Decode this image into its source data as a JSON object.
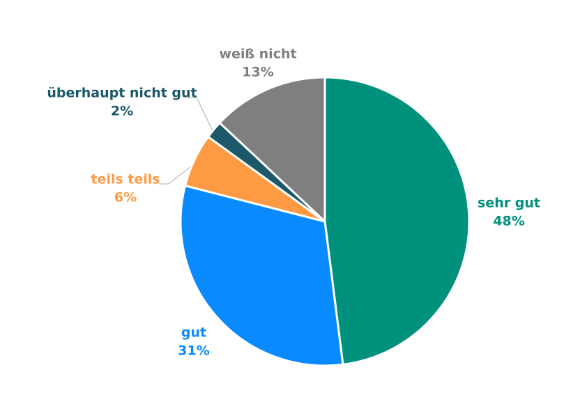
{
  "chart_data": {
    "type": "pie",
    "categories": [
      "sehr gut",
      "gut",
      "teils teils",
      "überhaupt nicht gut",
      "weiß nicht"
    ],
    "values": [
      48,
      31,
      6,
      2,
      13
    ],
    "value_labels": [
      "48%",
      "31%",
      "6%",
      "2%",
      "13%"
    ],
    "colors": [
      "#00917c",
      "#0a8aff",
      "#ff9a44",
      "#1b5869",
      "#7f7f7f"
    ]
  }
}
